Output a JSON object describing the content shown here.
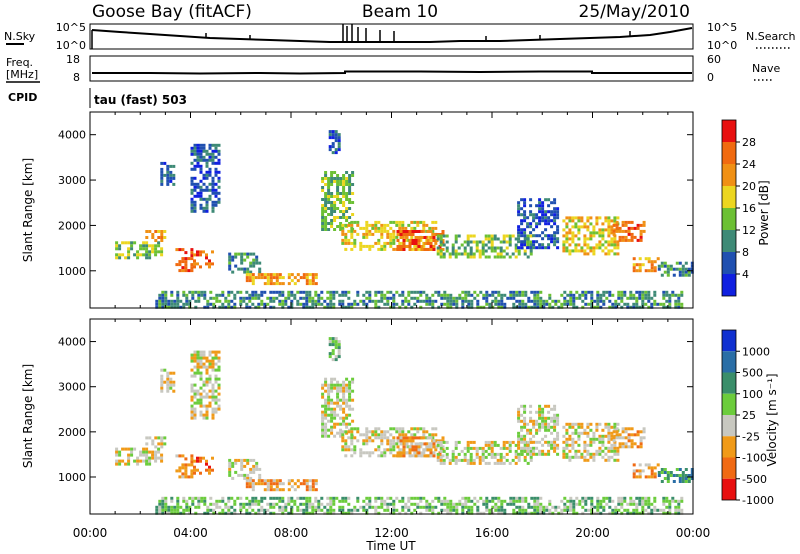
{
  "header": {
    "station": "Goose Bay (fitACF)",
    "beam": "Beam 10",
    "date": "25/May/2010"
  },
  "strips": {
    "nsky_label": "N.Sky",
    "nsky_ticks": [
      "10^5",
      "10^0"
    ],
    "nsearch_label": "N.Search",
    "freq_label_1": "Freq.",
    "freq_label_2": "[MHz]",
    "freq_ticks": [
      "18",
      "8"
    ],
    "nave_label": "Nave",
    "nave_ticks": [
      "60",
      "0"
    ],
    "cpid_label": "CPID",
    "cpid_text": "tau (fast) 503"
  },
  "axes": {
    "x_ticks": [
      "00:00",
      "04:00",
      "08:00",
      "12:00",
      "16:00",
      "20:00",
      "00:00"
    ],
    "x_tick_hours": [
      0,
      4,
      8,
      12,
      16,
      20,
      24
    ],
    "xlabel": "Time UT",
    "ylabel": "Slant Range [km]",
    "y_ticks": [
      "1000",
      "2000",
      "3000",
      "4000"
    ],
    "y_tick_values": [
      1000,
      2000,
      3000,
      4000
    ],
    "yrange": [
      180,
      4500
    ]
  },
  "power_scale": {
    "label": "Power [dB]",
    "ticks": [
      "4",
      "8",
      "12",
      "16",
      "20",
      "24",
      "28"
    ],
    "colors": [
      "#1020e0",
      "#2050b0",
      "#3e8a76",
      "#6cc034",
      "#ecd620",
      "#f09014",
      "#f06a10",
      "#e81010"
    ]
  },
  "velocity_scale": {
    "label": "Velocity [m s⁻¹]",
    "ticks": [
      "1000",
      "500",
      "100",
      "25",
      "-25",
      "-100",
      "-500",
      "-1000"
    ],
    "colors": [
      "#1030d0",
      "#2a6ea6",
      "#3a8e6a",
      "#6ccc3c",
      "#c8c8c0",
      "#f09a18",
      "#f06a14",
      "#e81010"
    ]
  },
  "chart_data": {
    "type": "heatmap",
    "x_unit": "hours UT",
    "y_unit": "km",
    "regions": [
      {
        "t": [
          1.0,
          2.8
        ],
        "r": [
          1300,
          1650
        ],
        "p": 3,
        "v": 4
      },
      {
        "t": [
          2.2,
          3.0
        ],
        "r": [
          1700,
          1900
        ],
        "p": 5,
        "v": 4
      },
      {
        "t": [
          2.8,
          3.3
        ],
        "r": [
          2900,
          3400
        ],
        "p": 1,
        "v": 4
      },
      {
        "t": [
          3.4,
          4.0
        ],
        "r": [
          1000,
          1500
        ],
        "p": 6,
        "v": 5
      },
      {
        "t": [
          4.1,
          4.9
        ],
        "r": [
          1100,
          1450
        ],
        "p": 6,
        "v": 6
      },
      {
        "t": [
          4.0,
          5.1
        ],
        "r": [
          2300,
          3800
        ],
        "p": 1,
        "v": 4
      },
      {
        "t": [
          5.5,
          6.8
        ],
        "r": [
          1000,
          1400
        ],
        "p": 2,
        "v": 4
      },
      {
        "t": [
          2.6,
          23.6
        ],
        "r": [
          190,
          560
        ],
        "p": 2,
        "v": 3
      },
      {
        "t": [
          6.2,
          9.0
        ],
        "r": [
          700,
          950
        ],
        "p": 5,
        "v": 5
      },
      {
        "t": [
          9.2,
          10.4
        ],
        "r": [
          1900,
          3200
        ],
        "p": 3,
        "v": 4
      },
      {
        "t": [
          10.0,
          13.8
        ],
        "r": [
          1500,
          2100
        ],
        "p": 4,
        "v": 4
      },
      {
        "t": [
          12.2,
          14.0
        ],
        "r": [
          1450,
          1900
        ],
        "p": 6,
        "v": 5
      },
      {
        "t": [
          13.8,
          17.6
        ],
        "r": [
          1300,
          1800
        ],
        "p": 3,
        "v": 4
      },
      {
        "t": [
          17.0,
          18.6
        ],
        "r": [
          1500,
          2600
        ],
        "p": 1,
        "v": 4
      },
      {
        "t": [
          18.8,
          21.0
        ],
        "r": [
          1400,
          2200
        ],
        "p": 4,
        "v": 4
      },
      {
        "t": [
          20.8,
          22.0
        ],
        "r": [
          1700,
          2100
        ],
        "p": 6,
        "v": 5
      },
      {
        "t": [
          21.6,
          22.6
        ],
        "r": [
          1000,
          1300
        ],
        "p": 5,
        "v": 5
      },
      {
        "t": [
          22.6,
          24.0
        ],
        "r": [
          900,
          1200
        ],
        "p": 2,
        "v": 2
      },
      {
        "t": [
          9.5,
          9.9
        ],
        "r": [
          3600,
          4100
        ],
        "p": 1,
        "v": 3
      }
    ]
  }
}
